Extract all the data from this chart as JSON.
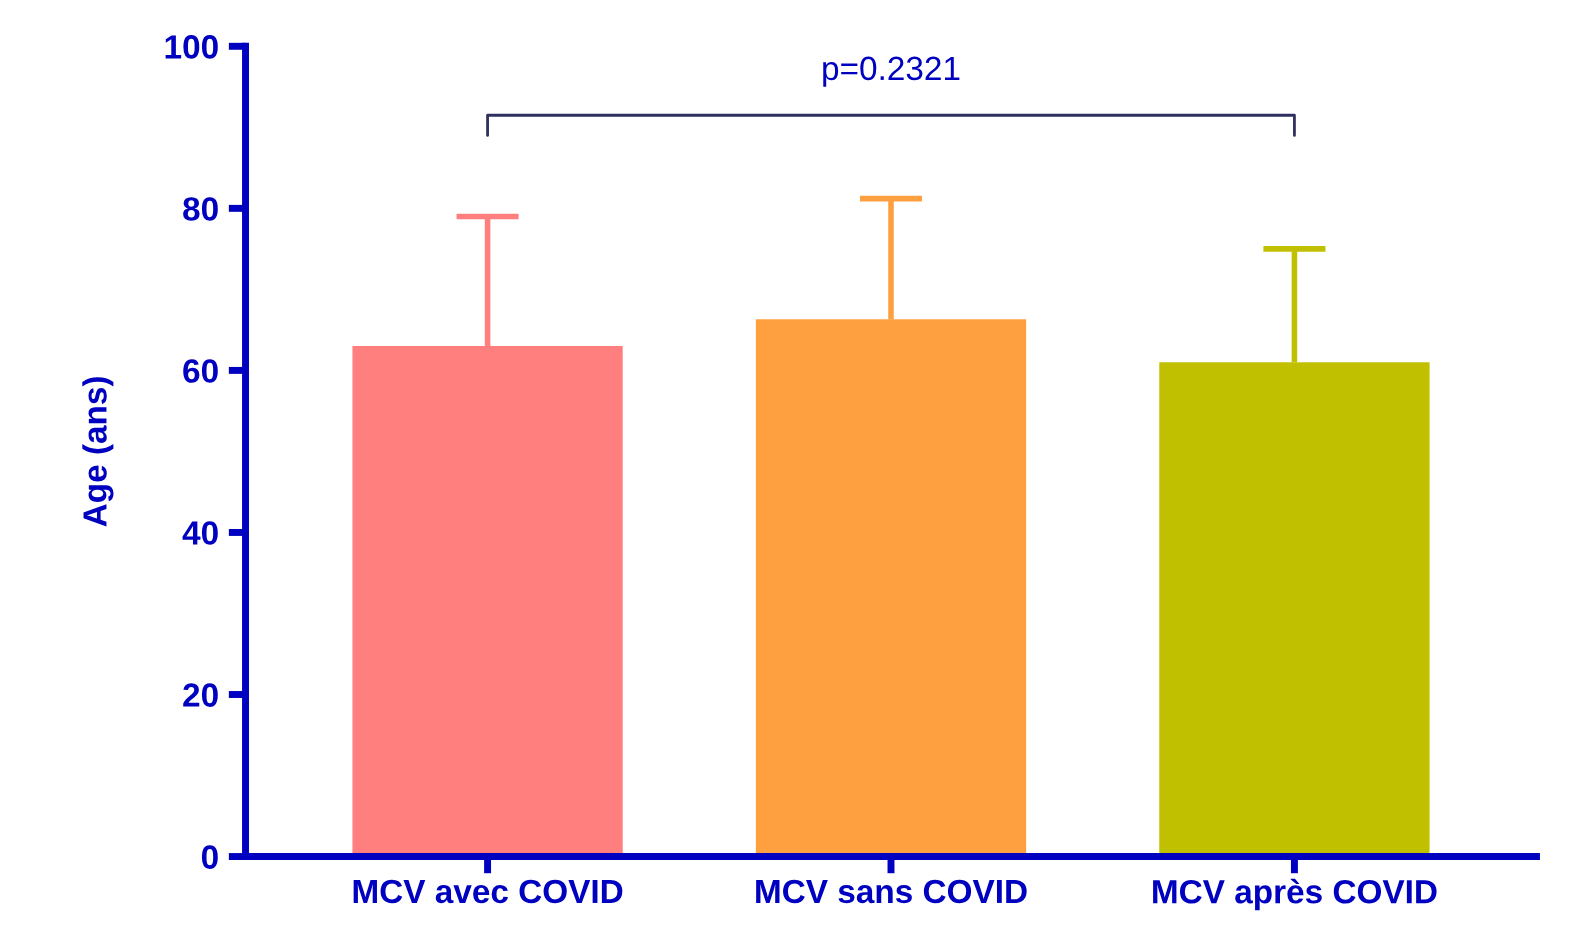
{
  "chart_data": {
    "type": "bar",
    "ylabel": "Age (ans)",
    "categories": [
      "MCV avec COVID",
      "MCV sans COVID",
      "MCV après COVID"
    ],
    "values": [
      63,
      66.3,
      61
    ],
    "colors": [
      "#ff7f7f",
      "#ffa040",
      "#c0c000"
    ],
    "errors": [
      [
        63,
        79
      ],
      [
        66.3,
        81.2
      ],
      [
        61,
        75
      ]
    ],
    "ylim": [
      0,
      100
    ],
    "yticks": [
      0,
      20,
      40,
      60,
      80,
      100
    ],
    "grid": false,
    "legend": false,
    "annotations": [
      "p=0.2321"
    ]
  }
}
